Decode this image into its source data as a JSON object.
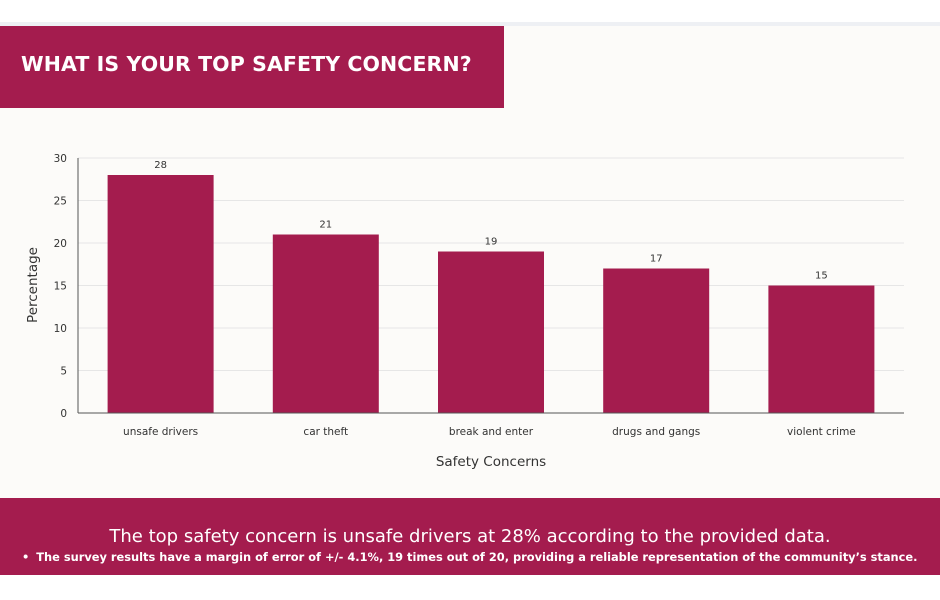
{
  "header": {
    "title": "WHAT IS YOUR TOP SAFETY CONCERN?"
  },
  "colors": {
    "accent": "#a41c4e",
    "bar": "#a41c4e",
    "background": "#fcfbf9"
  },
  "chart_data": {
    "type": "bar",
    "title": "",
    "xlabel": "Safety Concerns",
    "ylabel": "Percentage",
    "categories": [
      "unsafe drivers",
      "car theft",
      "break and enter",
      "drugs and gangs",
      "violent crime"
    ],
    "values": [
      28,
      21,
      19,
      17,
      15
    ],
    "ylim": [
      0,
      30
    ],
    "yticks": [
      0,
      5,
      10,
      15,
      20,
      25,
      30
    ],
    "grid": true,
    "data_labels": true
  },
  "footer": {
    "summary": "The top safety concern is unsafe drivers at 28% according to the provided data.",
    "bullet_glyph": "•",
    "bullet": "The survey results have a margin of error of +/- 4.1%, 19 times out of 20, providing a reliable representation of the community’s stance."
  }
}
